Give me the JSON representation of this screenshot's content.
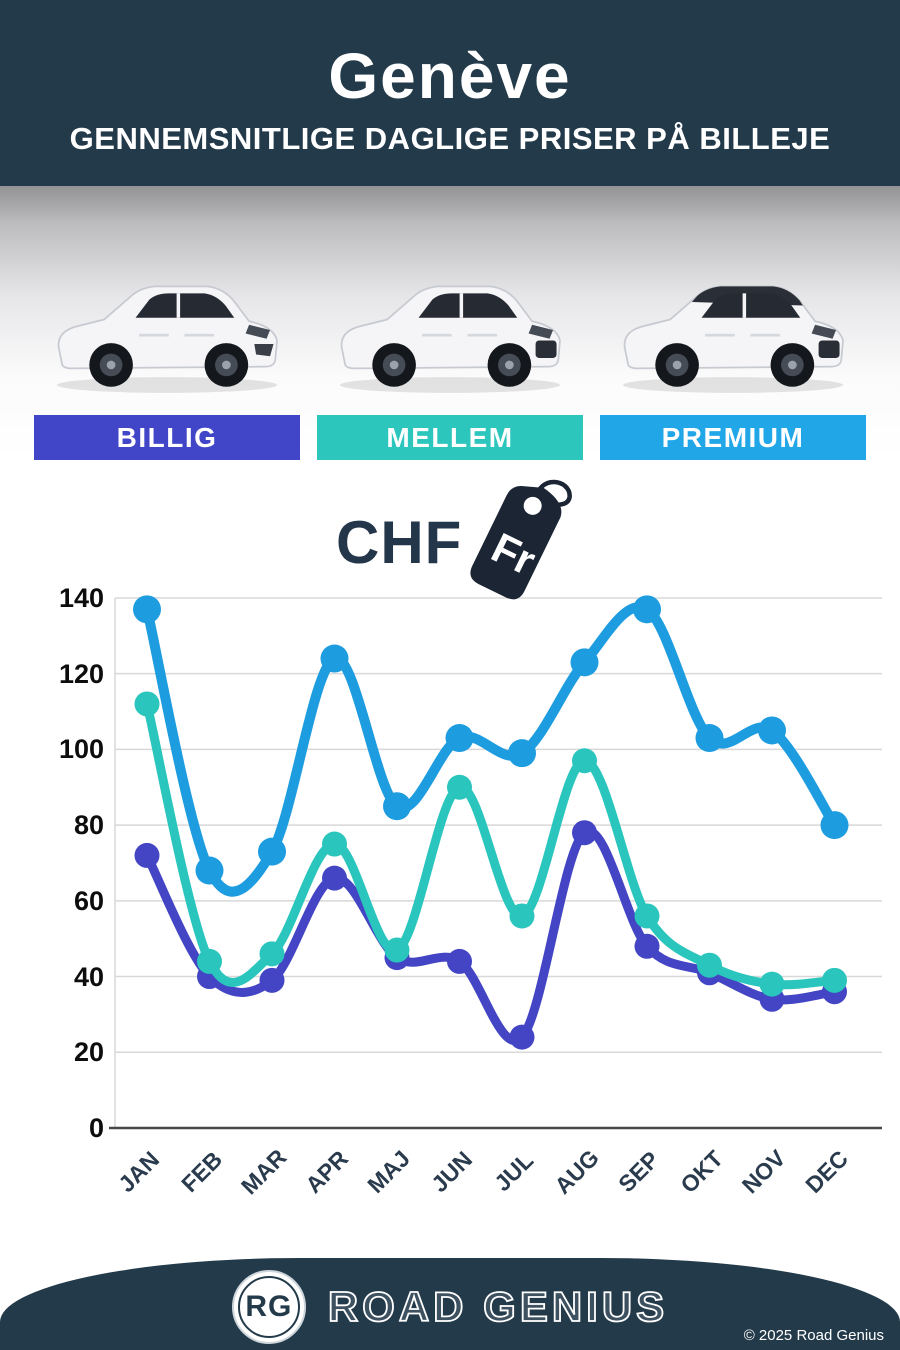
{
  "header": {
    "title": "Genève",
    "subtitle": "GENNEMSNITLIGE DAGLIGE PRISER PÅ BILLEJE",
    "background_color": "#233a4a"
  },
  "tiers": {
    "items": [
      {
        "label": "BILLIG",
        "color": "#4145c7"
      },
      {
        "label": "MELLEM",
        "color": "#2cc6bd"
      },
      {
        "label": "PREMIUM",
        "color": "#21a6e8"
      }
    ]
  },
  "currency": {
    "code": "CHF",
    "tag_label": "Fr",
    "ink_color": "#1b2534"
  },
  "chart_data": {
    "type": "line",
    "title": "",
    "xlabel": "",
    "ylabel": "",
    "unit": "CHF",
    "categories": [
      "JAN",
      "FEB",
      "MAR",
      "APR",
      "MAJ",
      "JUN",
      "JUL",
      "AUG",
      "SEP",
      "OKT",
      "NOV",
      "DEC"
    ],
    "series": [
      {
        "name": "BILLIG",
        "color": "#4345c4",
        "values": [
          72,
          40,
          39,
          66,
          45,
          44,
          24,
          78,
          48,
          41,
          34,
          36
        ]
      },
      {
        "name": "MELLEM",
        "color": "#2ac5bc",
        "values": [
          112,
          44,
          46,
          75,
          47,
          90,
          56,
          97,
          56,
          43,
          38,
          39
        ]
      },
      {
        "name": "PREMIUM",
        "color": "#1e9ce0",
        "values": [
          137,
          68,
          73,
          124,
          85,
          103,
          99,
          123,
          137,
          103,
          105,
          80
        ]
      }
    ],
    "ylim": [
      0,
      140
    ],
    "y_ticks": [
      0,
      20,
      40,
      60,
      80,
      100,
      120,
      140
    ],
    "grid": true,
    "legend_position": "none",
    "x_labels_rotation": -45
  },
  "footer": {
    "badge": "RG",
    "brand": "ROAD GENIUS",
    "copyright": "© 2025 Road Genius",
    "background_color": "#233a4a"
  }
}
